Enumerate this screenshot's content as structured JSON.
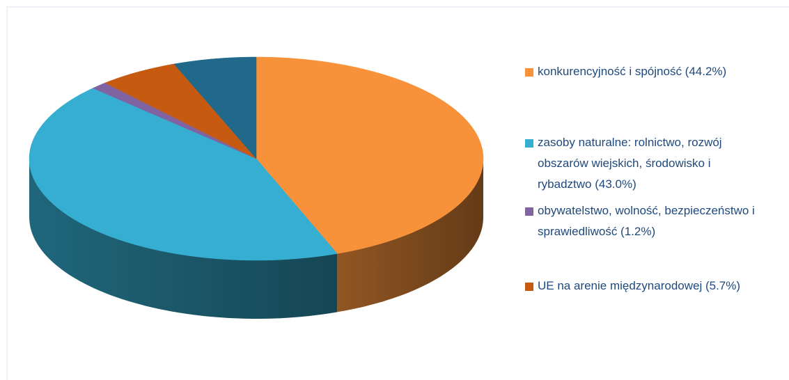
{
  "chart_data": {
    "type": "pie3d",
    "categories": [
      "konkurencyjność i spójność (44.2%)",
      "zasoby naturalne: rolnictwo, rozwój obszarów wiejskich, środowisko i rybadztwo (43.0%)",
      "obywatelstwo, wolność, bezpieczeństwo i sprawiedliwość (1.2%)",
      "UE na arenie międzynarodowej (5.7%)",
      null
    ],
    "values": [
      44.2,
      43.0,
      1.2,
      5.7,
      5.9
    ],
    "colors": [
      "#f7923a",
      "#35aed2",
      "#8064a2",
      "#c65a10",
      "#21698a"
    ],
    "legend": "right"
  }
}
